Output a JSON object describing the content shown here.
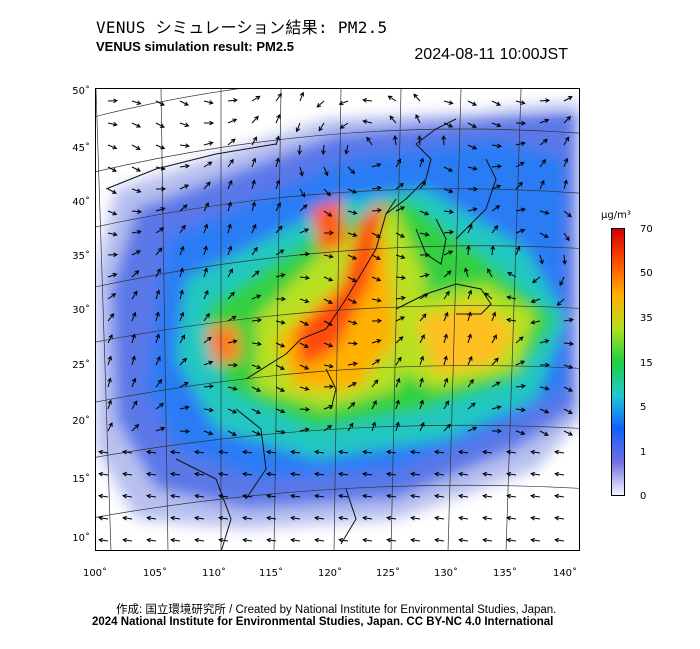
{
  "header": {
    "title_jp": "VENUS シミュレーション結果: PM2.5",
    "title_en": "VENUS simulation result: PM2.5",
    "timestamp": "2024-08-11 10:00JST"
  },
  "axes": {
    "lat_labels": [
      "50˚",
      "45˚",
      "40˚",
      "35˚",
      "30˚",
      "25˚",
      "20˚",
      "15˚",
      "10˚"
    ],
    "lon_labels": [
      "100˚",
      "105˚",
      "110˚",
      "115˚",
      "120˚",
      "125˚",
      "130˚",
      "135˚",
      "140˚"
    ]
  },
  "colorbar": {
    "unit": "μg/m³",
    "ticks": [
      "70",
      "50",
      "35",
      "15",
      "5",
      "1",
      "0"
    ],
    "colors": [
      "#f4f4ff",
      "#7070e0",
      "#1060ff",
      "#20c8d0",
      "#20d040",
      "#b0e020",
      "#ffb000",
      "#ff5000",
      "#d00000"
    ]
  },
  "credits": {
    "line1": "作成: 国立環境研究所 / Created by National Institute for Environmental Studies, Japan.",
    "line2": "2024 National Institute for Environmental Studies, Japan. CC BY-NC 4.0 International"
  }
}
